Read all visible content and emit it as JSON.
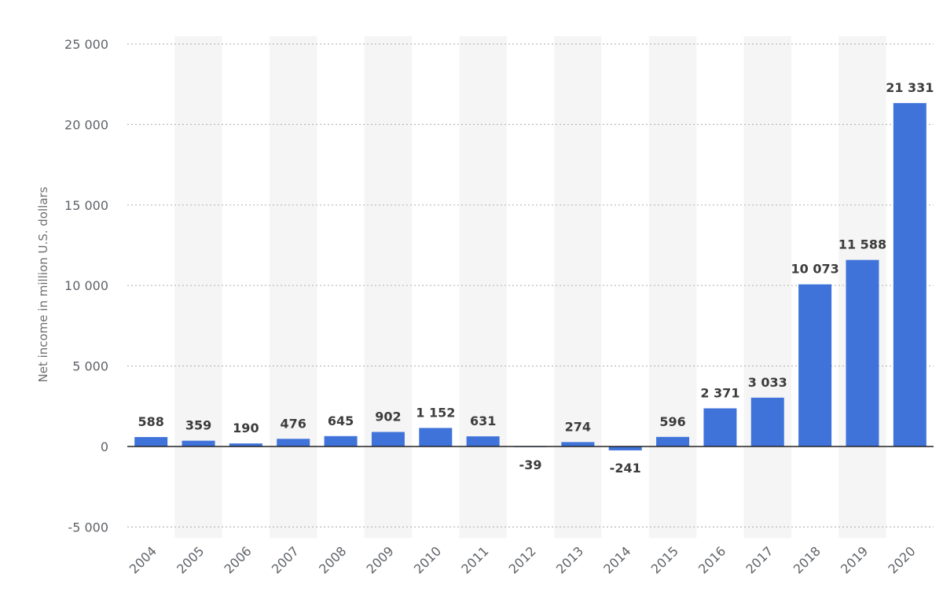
{
  "chart_data": {
    "type": "bar",
    "title": "",
    "xlabel": "",
    "ylabel": "Net income in million U.S. dollars",
    "categories": [
      "2004",
      "2005",
      "2006",
      "2007",
      "2008",
      "2009",
      "2010",
      "2011",
      "2012",
      "2013",
      "2014",
      "2015",
      "2016",
      "2017",
      "2018",
      "2019",
      "2020"
    ],
    "values": [
      588,
      359,
      190,
      476,
      645,
      902,
      1152,
      631,
      -39,
      274,
      -241,
      596,
      2371,
      3033,
      10073,
      11588,
      21331
    ],
    "value_labels": [
      "588",
      "359",
      "190",
      "476",
      "645",
      "902",
      "1 152",
      "631",
      "-39",
      "274",
      "-241",
      "596",
      "2 371",
      "3 033",
      "10 073",
      "11 588",
      "21 331"
    ],
    "ylim": [
      -5000,
      25000
    ],
    "yticks": [
      -5000,
      0,
      5000,
      10000,
      15000,
      20000,
      25000
    ],
    "ytick_labels": [
      "-5 000",
      "0",
      "5 000",
      "10 000",
      "15 000",
      "20 000",
      "25 000"
    ],
    "grid": true,
    "legend": "none",
    "colors": {
      "bar": "#3f73d9",
      "band": "#f5f5f5",
      "grid": "#b9b9b9",
      "zero_line": "#222222"
    }
  }
}
